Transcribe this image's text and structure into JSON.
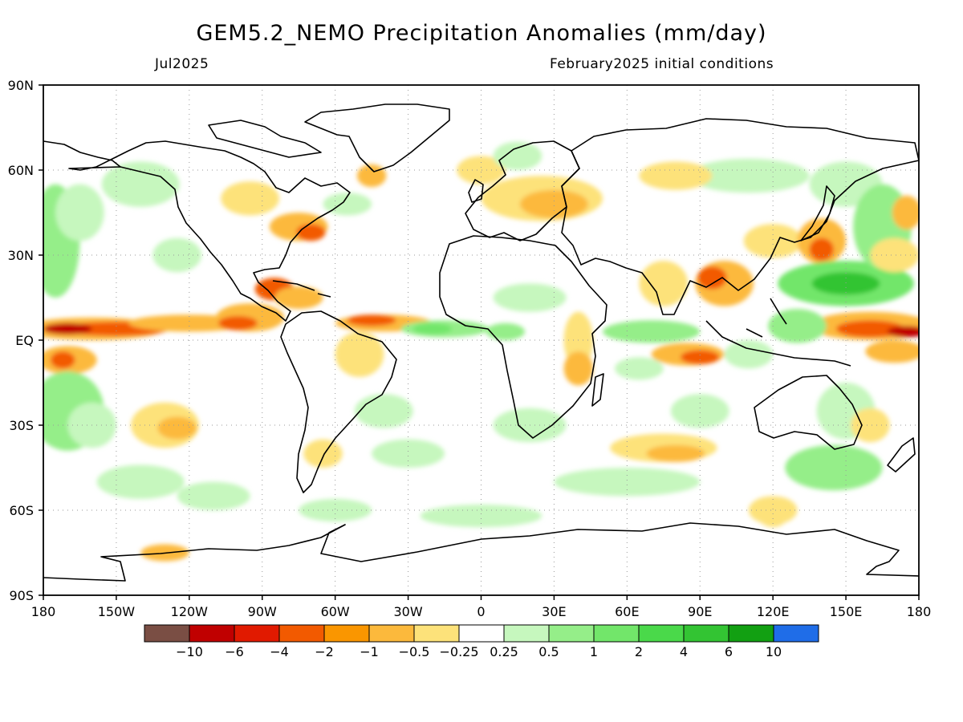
{
  "title": "GEM5.2_NEMO Precipitation Anomalies (mm/day)",
  "subtitle_left": "Jul2025",
  "subtitle_right": "February2025 initial conditions",
  "map": {
    "lat_range": [
      -90,
      90
    ],
    "lon_range": [
      -180,
      180
    ],
    "lat_ticks": [
      "90N",
      "60N",
      "30N",
      "EQ",
      "30S",
      "60S",
      "90S"
    ],
    "lon_ticks": [
      "180",
      "150W",
      "120W",
      "90W",
      "60W",
      "30W",
      "0",
      "30E",
      "60E",
      "90E",
      "120E",
      "150E",
      "180"
    ],
    "grid": true
  },
  "colorbar": {
    "labels": [
      "−10",
      "−6",
      "−4",
      "−2",
      "−1",
      "−0.5",
      "−0.25",
      "0.25",
      "0.5",
      "1",
      "2",
      "4",
      "6",
      "10"
    ],
    "colors": [
      "#7a4e44",
      "#c00000",
      "#e11a00",
      "#f25a00",
      "#fa9600",
      "#fcb93c",
      "#fde27a",
      "#ffffff",
      "#c6f7be",
      "#95ee89",
      "#72e66a",
      "#4ad94a",
      "#33c433",
      "#12a012",
      "#1f6de8"
    ]
  },
  "anomaly_colors": {
    "neg_light": "#fde27a",
    "neg_mid": "#fcb93c",
    "neg_strong": "#fa9600",
    "neg_heavy": "#f25a00",
    "neg_extreme": "#c00000",
    "pos_light": "#c6f7be",
    "pos_mid": "#95ee89",
    "pos_strong": "#72e66a",
    "pos_heavy": "#33c433"
  }
}
